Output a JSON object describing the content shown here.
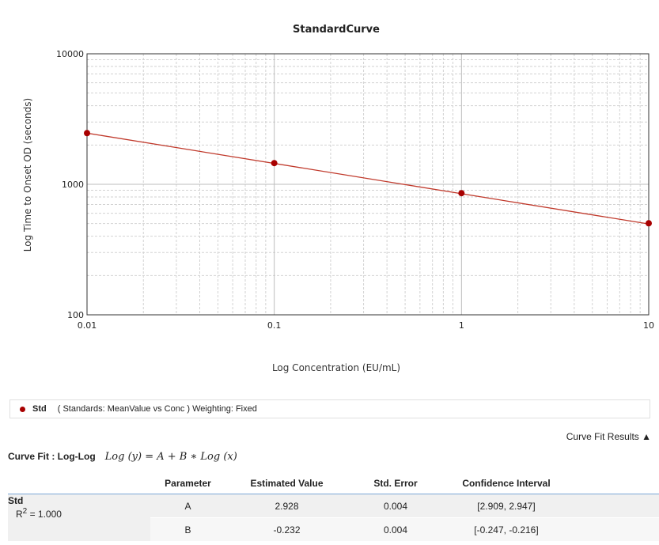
{
  "chart_data": {
    "type": "line",
    "title": "StandardCurve",
    "xlabel": "Log Concentration (EU/mL)",
    "ylabel": "Log Time to Onset OD (seconds)",
    "x_scale": "log",
    "y_scale": "log",
    "xlim": [
      0.01,
      10
    ],
    "ylim": [
      100,
      10000
    ],
    "x_ticks": [
      "0.01",
      "0.1",
      "1",
      "10"
    ],
    "y_ticks": [
      "100",
      "1000",
      "10000"
    ],
    "grid": true,
    "series": [
      {
        "name": "Std",
        "color": "#a80000",
        "points": [
          {
            "x": 0.01,
            "y": 2468
          },
          {
            "x": 0.1,
            "y": 1453
          },
          {
            "x": 1,
            "y": 855
          },
          {
            "x": 10,
            "y": 503
          }
        ],
        "fit_line": {
          "intercept_log10": 2.928,
          "slope": -0.232
        }
      }
    ]
  },
  "legend": {
    "series": "Std",
    "description": "( Standards: MeanValue vs Conc )  Weighting: Fixed"
  },
  "results_toggle": "Curve Fit Results ▲",
  "curve_fit": {
    "label": "Curve Fit : Log-Log",
    "equation": "Log (y) = A + B ∗ Log (x)"
  },
  "table": {
    "headers": [
      "Parameter",
      "Estimated Value",
      "Std. Error",
      "Confidence Interval"
    ],
    "series_name": "Std",
    "r2_label": "R",
    "r2_sup": "2",
    "r2_value": " = 1.000",
    "rows": [
      {
        "parameter": "A",
        "estimate": "2.928",
        "std_error": "0.004",
        "ci": "[2.909, 2.947]"
      },
      {
        "parameter": "B",
        "estimate": "-0.232",
        "std_error": "0.004",
        "ci": "[-0.247, -0.216]"
      }
    ]
  }
}
